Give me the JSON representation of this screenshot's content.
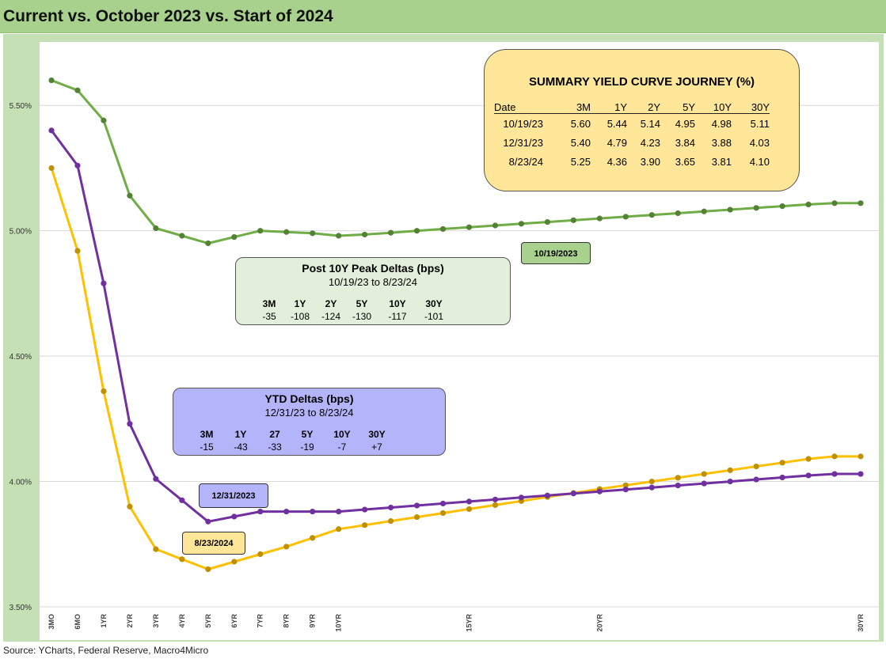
{
  "title": "Current vs. October 2023 vs. Start of 2024",
  "source": "Source: YCharts, Federal Reserve, Macro4Micro",
  "colors": {
    "title_bar": "#a9d18e",
    "plot_frame": "#c5e0b4",
    "oct_series": "#70ad47",
    "oct_marker": "#548235",
    "dec_series": "#7030a0",
    "dec_marker": "#7030a0",
    "aug_series": "#ffc000",
    "aug_marker": "#bf9000"
  },
  "chart_data": {
    "type": "line",
    "ylim": [
      3.5,
      5.75
    ],
    "yticks": [
      3.5,
      4.0,
      4.5,
      5.0,
      5.5
    ],
    "ytick_labels": [
      "3.50%",
      "4.00%",
      "4.50%",
      "5.00%",
      "5.50%"
    ],
    "x": [
      0.25,
      0.5,
      1,
      2,
      3,
      4,
      5,
      6,
      7,
      8,
      9,
      10,
      11,
      12,
      13,
      14,
      15,
      16,
      17,
      18,
      19,
      20,
      21,
      22,
      23,
      24,
      25,
      26,
      27,
      28,
      29,
      30
    ],
    "xtick_labels": [
      "3MO",
      "6MO",
      "1YR",
      "2YR",
      "3YR",
      "4YR",
      "5YR",
      "6YR",
      "7YR",
      "8YR",
      "9YR",
      "10YR",
      "",
      "",
      "",
      "",
      "15YR",
      "",
      "",
      "",
      "",
      "20YR",
      "",
      "",
      "",
      "",
      "",
      "",
      "",
      "",
      "",
      "30YR"
    ],
    "series": [
      {
        "key": "oct",
        "values": [
          5.6,
          5.56,
          5.44,
          5.14,
          5.01,
          4.98,
          4.95,
          4.975,
          5.0,
          4.995,
          4.99,
          4.98,
          4.985,
          4.992,
          5.0,
          5.007,
          5.014,
          5.021,
          5.028,
          5.035,
          5.042,
          5.049,
          5.056,
          5.063,
          5.07,
          5.077,
          5.084,
          5.091,
          5.098,
          5.105,
          5.11,
          5.11
        ]
      },
      {
        "key": "dec",
        "values": [
          5.4,
          5.26,
          4.79,
          4.23,
          4.01,
          3.925,
          3.84,
          3.86,
          3.88,
          3.88,
          3.88,
          3.88,
          3.888,
          3.896,
          3.904,
          3.912,
          3.92,
          3.928,
          3.936,
          3.944,
          3.952,
          3.96,
          3.968,
          3.976,
          3.984,
          3.992,
          4.0,
          4.008,
          4.016,
          4.024,
          4.03,
          4.03
        ]
      },
      {
        "key": "aug",
        "values": [
          5.25,
          4.92,
          4.36,
          3.9,
          3.73,
          3.69,
          3.65,
          3.68,
          3.71,
          3.74,
          3.775,
          3.81,
          3.826,
          3.842,
          3.858,
          3.874,
          3.89,
          3.906,
          3.922,
          3.938,
          3.954,
          3.97,
          3.985,
          4.0,
          4.015,
          4.03,
          4.045,
          4.06,
          4.075,
          4.09,
          4.1,
          4.1
        ]
      }
    ]
  },
  "summary": {
    "title": "SUMMARY YIELD CURVE JOURNEY (%)",
    "headers": [
      "Date",
      "3M",
      "1Y",
      "2Y",
      "5Y",
      "10Y",
      "30Y"
    ],
    "rows": [
      [
        "10/19/23",
        "5.60",
        "5.44",
        "5.14",
        "4.95",
        "4.98",
        "5.11"
      ],
      [
        "12/31/23",
        "5.40",
        "4.79",
        "4.23",
        "3.84",
        "3.88",
        "4.03"
      ],
      [
        "8/23/24",
        "5.25",
        "4.36",
        "3.90",
        "3.65",
        "3.81",
        "4.10"
      ]
    ]
  },
  "post_peak": {
    "title": "Post 10Y Peak Deltas (bps)",
    "subtitle": "10/19/23 to 8/23/24",
    "headers": [
      "3M",
      "1Y",
      "2Y",
      "5Y",
      "10Y",
      "30Y"
    ],
    "values": [
      "-35",
      "-108",
      "-124",
      "-130",
      "-117",
      "-101"
    ]
  },
  "ytd": {
    "title": "YTD Deltas (bps)",
    "subtitle": "12/31/23 to 8/23/24",
    "headers": [
      "3M",
      "1Y",
      "27",
      "5Y",
      "10Y",
      "30Y"
    ],
    "values": [
      "-15",
      "-43",
      "-33",
      "-19",
      "-7",
      "+7"
    ]
  },
  "labels": {
    "oct": "10/19/2023",
    "dec": "12/31/2023",
    "aug": "8/23/2024"
  }
}
